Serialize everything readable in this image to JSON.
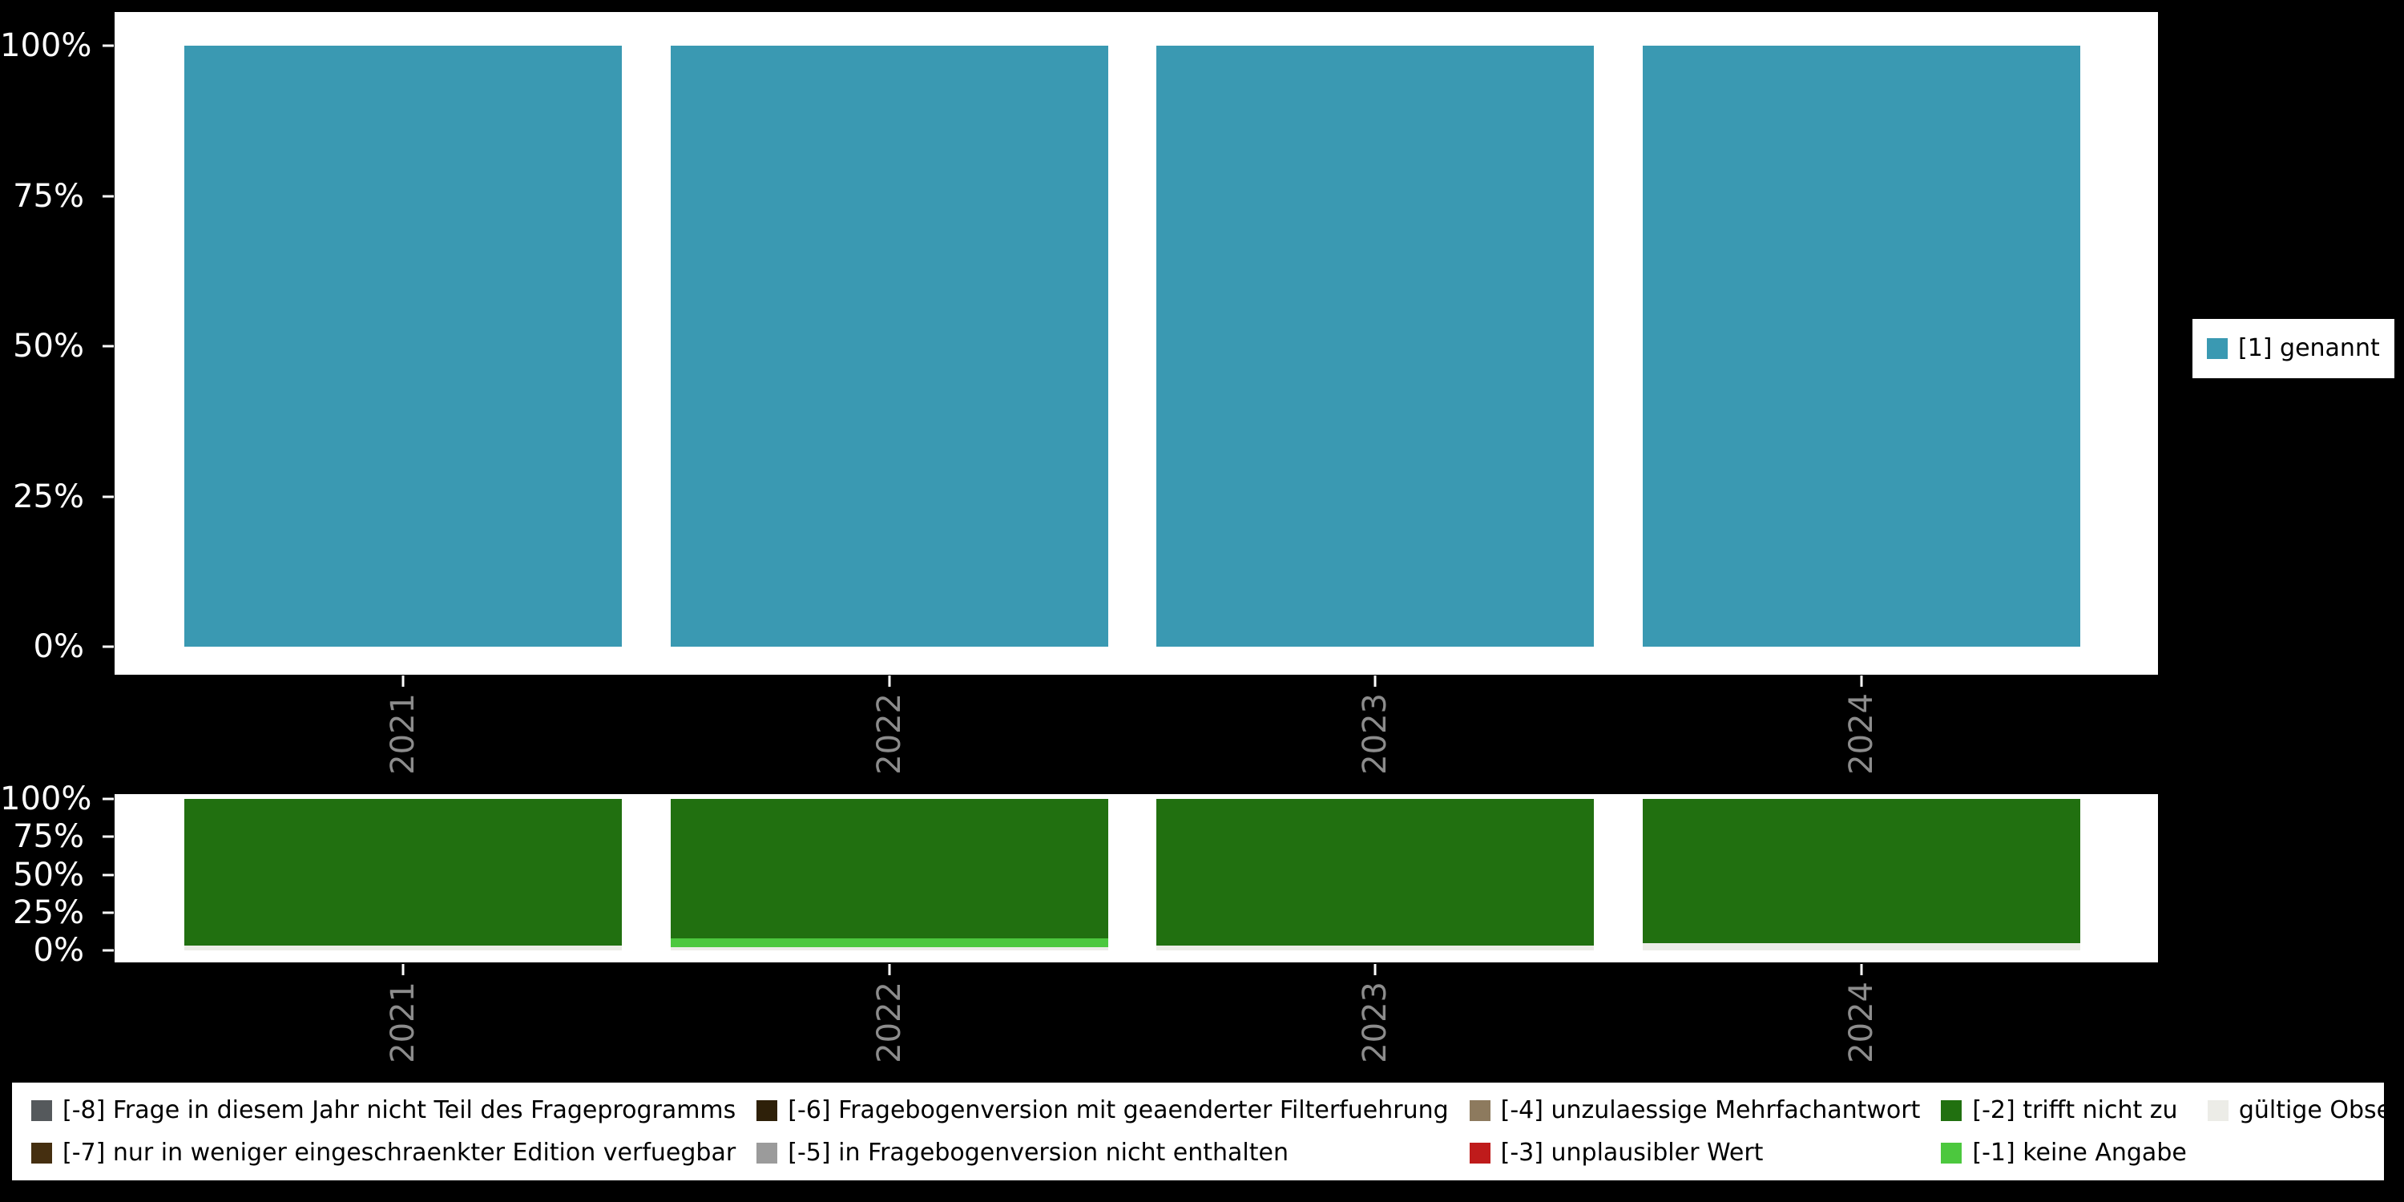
{
  "page": {
    "background": "#000000",
    "panel_color": "#ffffff",
    "y_axis_text_color": "#ffffff",
    "x_axis_text_color": "#8c8c8c"
  },
  "chart_data": [
    {
      "type": "bar",
      "stacked": true,
      "title": "",
      "xlabel": "",
      "ylabel": "",
      "ylim": [
        0,
        100
      ],
      "grid": false,
      "categories": [
        "2021",
        "2022",
        "2023",
        "2024"
      ],
      "series": [
        {
          "name": "[1] genannt",
          "color": "#3a99b2",
          "values": [
            100,
            100,
            100,
            100
          ]
        }
      ],
      "y_ticks": [
        {
          "label": "0%",
          "value": 0
        },
        {
          "label": "25%",
          "value": 25
        },
        {
          "label": "50%",
          "value": 50
        },
        {
          "label": "75%",
          "value": 75
        },
        {
          "label": "100%",
          "value": 100
        }
      ],
      "legend": {
        "position": "right",
        "items": [
          {
            "label": "[1] genannt",
            "color": "#3a99b2"
          }
        ]
      }
    },
    {
      "type": "bar",
      "stacked": true,
      "title": "",
      "xlabel": "",
      "ylabel": "",
      "ylim": [
        0,
        100
      ],
      "grid": false,
      "categories": [
        "2021",
        "2022",
        "2023",
        "2024"
      ],
      "series": [
        {
          "name": "gültige Observationen",
          "color": "#ecece7",
          "values": [
            3,
            2,
            3,
            5
          ]
        },
        {
          "name": "[-1] keine Angabe",
          "color": "#4cc83e",
          "values": [
            0,
            6,
            0,
            0
          ]
        },
        {
          "name": "[-2] trifft nicht zu",
          "color": "#217010",
          "values": [
            97,
            92,
            97,
            95
          ]
        }
      ],
      "y_ticks": [
        {
          "label": "0%",
          "value": 0
        },
        {
          "label": "25%",
          "value": 25
        },
        {
          "label": "50%",
          "value": 50
        },
        {
          "label": "75%",
          "value": 75
        },
        {
          "label": "100%",
          "value": 100
        }
      ],
      "legend": {
        "position": "bottom",
        "items": [
          {
            "label": "[-8] Frage in diesem Jahr nicht Teil des Frageprogramms",
            "color": "#55595c"
          },
          {
            "label": "[-7] nur in weniger eingeschraenkter Edition verfuegbar",
            "color": "#452f10"
          },
          {
            "label": "[-6] Fragebogenversion mit geaenderter Filterfuehrung",
            "color": "#2e2009"
          },
          {
            "label": "[-5] in Fragebogenversion nicht enthalten",
            "color": "#9b9b9b"
          },
          {
            "label": "[-4] unzulaessige Mehrfachantwort",
            "color": "#8d7a5e"
          },
          {
            "label": "[-3] unplausibler Wert",
            "color": "#bf1b1b"
          },
          {
            "label": "[-2] trifft nicht zu",
            "color": "#217010"
          },
          {
            "label": "[-1] keine Angabe",
            "color": "#4cc83e"
          },
          {
            "label": "gültige Observationen",
            "color": "#ecece7"
          }
        ]
      }
    }
  ]
}
